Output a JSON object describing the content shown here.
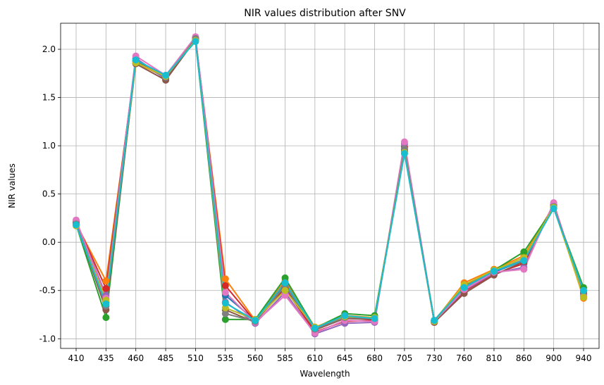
{
  "chart_data": {
    "type": "line",
    "title": "NIR values distribution after SNV",
    "xlabel": "Wavelength",
    "ylabel": "NIR values",
    "categories": [
      "410",
      "435",
      "460",
      "485",
      "510",
      "535",
      "560",
      "585",
      "610",
      "645",
      "680",
      "705",
      "730",
      "760",
      "810",
      "860",
      "900",
      "940"
    ],
    "yticks": [
      "-1.0",
      "-0.5",
      "0.0",
      "0.5",
      "1.0",
      "1.5",
      "2.0"
    ],
    "ylim": [
      -1.1,
      2.27
    ],
    "grid": true,
    "legend": "none",
    "marker": "circle",
    "colors": [
      "#1f77b4",
      "#ff7f0e",
      "#2ca02c",
      "#d62728",
      "#9467bd",
      "#8c564b",
      "#e377c2",
      "#7f7f7f",
      "#bcbd22",
      "#17becf"
    ],
    "series": [
      {
        "values": [
          0.2,
          -0.62,
          1.88,
          1.7,
          2.11,
          -0.55,
          -0.81,
          -0.46,
          -0.9,
          -0.78,
          -0.79,
          0.96,
          -0.81,
          -0.47,
          -0.31,
          -0.19,
          0.37,
          -0.5
        ]
      },
      {
        "values": [
          0.19,
          -0.4,
          1.86,
          1.71,
          2.1,
          -0.38,
          -0.81,
          -0.4,
          -0.88,
          -0.76,
          -0.78,
          0.98,
          -0.82,
          -0.42,
          -0.28,
          -0.14,
          0.38,
          -0.58
        ]
      },
      {
        "values": [
          0.18,
          -0.78,
          1.88,
          1.72,
          2.09,
          -0.8,
          -0.8,
          -0.37,
          -0.89,
          -0.74,
          -0.76,
          0.94,
          -0.81,
          -0.45,
          -0.29,
          -0.1,
          0.36,
          -0.47
        ]
      },
      {
        "values": [
          0.21,
          -0.48,
          1.9,
          1.7,
          2.12,
          -0.45,
          -0.82,
          -0.48,
          -0.93,
          -0.82,
          -0.81,
          0.99,
          -0.83,
          -0.51,
          -0.33,
          -0.22,
          0.39,
          -0.53
        ]
      },
      {
        "values": [
          0.22,
          -0.55,
          1.91,
          1.69,
          2.12,
          -0.62,
          -0.84,
          -0.52,
          -0.95,
          -0.84,
          -0.83,
          1.02,
          -0.82,
          -0.5,
          -0.32,
          -0.26,
          0.4,
          -0.55
        ]
      },
      {
        "values": [
          0.2,
          -0.7,
          1.85,
          1.68,
          2.1,
          -0.7,
          -0.83,
          -0.43,
          -0.91,
          -0.79,
          -0.8,
          0.95,
          -0.83,
          -0.53,
          -0.34,
          -0.2,
          0.38,
          -0.52
        ]
      },
      {
        "values": [
          0.23,
          -0.58,
          1.93,
          1.73,
          2.13,
          -0.52,
          -0.83,
          -0.55,
          -0.94,
          -0.81,
          -0.82,
          1.04,
          -0.82,
          -0.49,
          -0.31,
          -0.28,
          0.41,
          -0.56
        ]
      },
      {
        "values": [
          0.19,
          -0.66,
          1.87,
          1.71,
          2.11,
          -0.74,
          -0.82,
          -0.45,
          -0.9,
          -0.78,
          -0.79,
          0.97,
          -0.81,
          -0.46,
          -0.3,
          -0.18,
          0.37,
          -0.51
        ]
      },
      {
        "values": [
          0.17,
          -0.6,
          1.86,
          1.72,
          2.09,
          -0.68,
          -0.8,
          -0.5,
          -0.88,
          -0.77,
          -0.78,
          0.93,
          -0.82,
          -0.44,
          -0.29,
          -0.16,
          0.36,
          -0.57
        ]
      },
      {
        "values": [
          0.18,
          -0.64,
          1.89,
          1.73,
          2.08,
          -0.63,
          -0.81,
          -0.42,
          -0.89,
          -0.76,
          -0.79,
          0.92,
          -0.81,
          -0.47,
          -0.3,
          -0.19,
          0.35,
          -0.5
        ]
      }
    ]
  }
}
